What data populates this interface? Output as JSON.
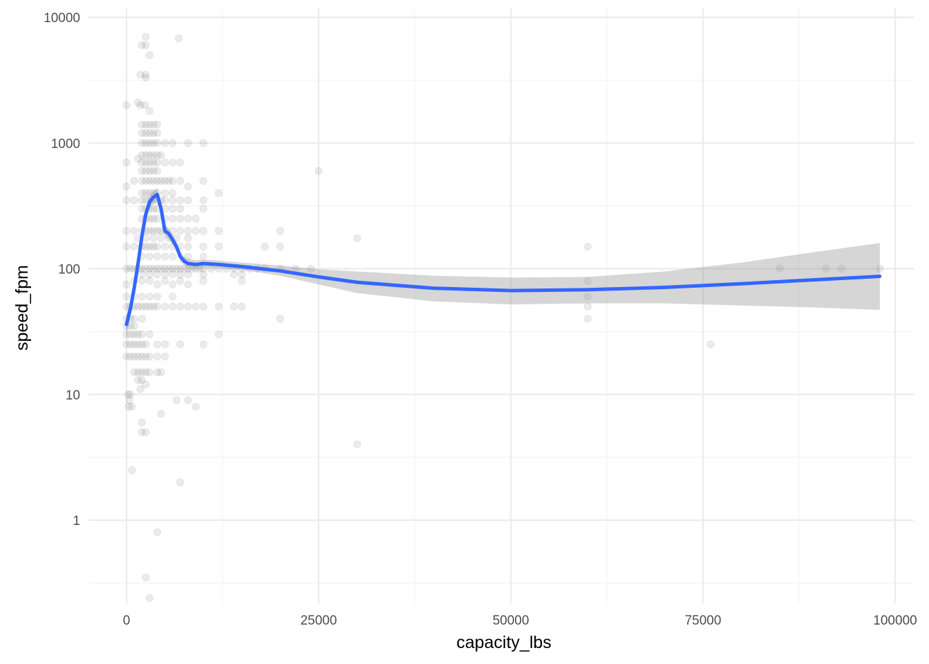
{
  "chart_data": {
    "type": "scatter",
    "title": "",
    "xlabel": "capacity_lbs",
    "ylabel": "speed_fpm",
    "xlim": [
      -5000,
      102000
    ],
    "ylim": [
      0.22,
      10000
    ],
    "y_scale": "log10",
    "x_ticks": [
      0,
      25000,
      50000,
      75000,
      100000
    ],
    "x_tick_labels": [
      "0",
      "25000",
      "50000",
      "75000",
      "100000"
    ],
    "y_ticks": [
      1,
      10,
      100,
      1000,
      10000
    ],
    "y_tick_labels": [
      "1",
      "10",
      "100",
      "1000",
      "10000"
    ],
    "grid": true,
    "legend": "none",
    "colors": {
      "points": "#000000",
      "smooth_line": "#3366FF",
      "confidence_band": "#999999",
      "grid": "#ebebeb"
    },
    "scatter": {
      "series_name": "",
      "opacity": 0.08,
      "points": [
        [
          2500,
          7000
        ],
        [
          2000,
          6000
        ],
        [
          2500,
          6000
        ],
        [
          3000,
          5000
        ],
        [
          6800,
          6800
        ],
        [
          1800,
          3500
        ],
        [
          2500,
          3500
        ],
        [
          2500,
          3300
        ],
        [
          0,
          2000
        ],
        [
          1500,
          2100
        ],
        [
          1800,
          2000
        ],
        [
          2400,
          2000
        ],
        [
          3000,
          1800
        ],
        [
          2000,
          1400
        ],
        [
          2500,
          1400
        ],
        [
          3000,
          1400
        ],
        [
          3500,
          1400
        ],
        [
          4000,
          1400
        ],
        [
          2000,
          1200
        ],
        [
          2500,
          1200
        ],
        [
          3000,
          1200
        ],
        [
          3500,
          1200
        ],
        [
          4000,
          1200
        ],
        [
          2000,
          1000
        ],
        [
          2500,
          1000
        ],
        [
          3000,
          1000
        ],
        [
          3500,
          1000
        ],
        [
          4000,
          1000
        ],
        [
          5000,
          1000
        ],
        [
          6000,
          1000
        ],
        [
          8000,
          1000
        ],
        [
          10000,
          1000
        ],
        [
          2000,
          800
        ],
        [
          2500,
          800
        ],
        [
          3000,
          800
        ],
        [
          3500,
          800
        ],
        [
          4000,
          800
        ],
        [
          4500,
          800
        ],
        [
          5000,
          700
        ],
        [
          6000,
          700
        ],
        [
          7000,
          700
        ],
        [
          0,
          700
        ],
        [
          1500,
          750
        ],
        [
          2000,
          700
        ],
        [
          2500,
          700
        ],
        [
          3000,
          700
        ],
        [
          3500,
          700
        ],
        [
          4000,
          700
        ],
        [
          2000,
          600
        ],
        [
          2500,
          600
        ],
        [
          3000,
          600
        ],
        [
          3500,
          600
        ],
        [
          4000,
          600
        ],
        [
          25000,
          600
        ],
        [
          0,
          450
        ],
        [
          1000,
          500
        ],
        [
          2000,
          500
        ],
        [
          2500,
          500
        ],
        [
          3000,
          500
        ],
        [
          3500,
          500
        ],
        [
          4000,
          500
        ],
        [
          4500,
          500
        ],
        [
          5000,
          500
        ],
        [
          5500,
          500
        ],
        [
          6000,
          500
        ],
        [
          7000,
          500
        ],
        [
          8000,
          450
        ],
        [
          10000,
          500
        ],
        [
          2000,
          400
        ],
        [
          2500,
          400
        ],
        [
          3000,
          400
        ],
        [
          3500,
          400
        ],
        [
          4000,
          400
        ],
        [
          5000,
          400
        ],
        [
          6000,
          400
        ],
        [
          12000,
          400
        ],
        [
          0,
          350
        ],
        [
          1000,
          350
        ],
        [
          2000,
          350
        ],
        [
          2500,
          350
        ],
        [
          3000,
          350
        ],
        [
          3500,
          350
        ],
        [
          4000,
          350
        ],
        [
          4500,
          350
        ],
        [
          5000,
          350
        ],
        [
          6000,
          350
        ],
        [
          7000,
          350
        ],
        [
          8000,
          350
        ],
        [
          10000,
          350
        ],
        [
          2000,
          300
        ],
        [
          2500,
          300
        ],
        [
          3000,
          300
        ],
        [
          3500,
          300
        ],
        [
          4000,
          300
        ],
        [
          5000,
          300
        ],
        [
          6000,
          300
        ],
        [
          7000,
          300
        ],
        [
          10000,
          300
        ],
        [
          2000,
          250
        ],
        [
          2500,
          250
        ],
        [
          3000,
          250
        ],
        [
          3500,
          250
        ],
        [
          4000,
          250
        ],
        [
          5000,
          250
        ],
        [
          6000,
          250
        ],
        [
          7000,
          250
        ],
        [
          8000,
          250
        ],
        [
          9000,
          250
        ],
        [
          0,
          200
        ],
        [
          1000,
          200
        ],
        [
          2000,
          200
        ],
        [
          2500,
          200
        ],
        [
          3000,
          200
        ],
        [
          3500,
          200
        ],
        [
          4000,
          200
        ],
        [
          4500,
          200
        ],
        [
          5000,
          200
        ],
        [
          6000,
          200
        ],
        [
          7000,
          200
        ],
        [
          8000,
          200
        ],
        [
          9000,
          200
        ],
        [
          10000,
          200
        ],
        [
          12000,
          200
        ],
        [
          20000,
          200
        ],
        [
          1500,
          175
        ],
        [
          2500,
          175
        ],
        [
          3500,
          175
        ],
        [
          4500,
          175
        ],
        [
          5500,
          175
        ],
        [
          6500,
          175
        ],
        [
          8000,
          175
        ],
        [
          30000,
          175
        ],
        [
          0,
          150
        ],
        [
          1000,
          150
        ],
        [
          2000,
          150
        ],
        [
          2500,
          150
        ],
        [
          3000,
          150
        ],
        [
          3500,
          150
        ],
        [
          4000,
          150
        ],
        [
          5000,
          150
        ],
        [
          6000,
          150
        ],
        [
          7000,
          150
        ],
        [
          8000,
          150
        ],
        [
          10000,
          150
        ],
        [
          12000,
          150
        ],
        [
          18000,
          150
        ],
        [
          20000,
          150
        ],
        [
          60000,
          150
        ],
        [
          2000,
          125
        ],
        [
          3000,
          125
        ],
        [
          4000,
          125
        ],
        [
          5000,
          125
        ],
        [
          6000,
          125
        ],
        [
          8000,
          125
        ],
        [
          10000,
          125
        ],
        [
          0,
          100
        ],
        [
          500,
          100
        ],
        [
          1000,
          100
        ],
        [
          1500,
          100
        ],
        [
          2000,
          100
        ],
        [
          2500,
          100
        ],
        [
          3000,
          100
        ],
        [
          3500,
          100
        ],
        [
          4000,
          100
        ],
        [
          4500,
          100
        ],
        [
          5000,
          100
        ],
        [
          5500,
          100
        ],
        [
          6000,
          100
        ],
        [
          6500,
          100
        ],
        [
          7000,
          100
        ],
        [
          7500,
          100
        ],
        [
          8000,
          100
        ],
        [
          8500,
          100
        ],
        [
          9000,
          100
        ],
        [
          9500,
          100
        ],
        [
          10000,
          100
        ],
        [
          11000,
          100
        ],
        [
          12000,
          100
        ],
        [
          13000,
          100
        ],
        [
          14000,
          100
        ],
        [
          15000,
          100
        ],
        [
          16000,
          100
        ],
        [
          17000,
          100
        ],
        [
          18000,
          100
        ],
        [
          20000,
          100
        ],
        [
          22000,
          100
        ],
        [
          24000,
          100
        ],
        [
          85000,
          100
        ],
        [
          91000,
          100
        ],
        [
          93000,
          100
        ],
        [
          98000,
          100
        ],
        [
          2000,
          90
        ],
        [
          3000,
          90
        ],
        [
          4000,
          90
        ],
        [
          5000,
          90
        ],
        [
          6000,
          90
        ],
        [
          7000,
          90
        ],
        [
          8000,
          90
        ],
        [
          10000,
          90
        ],
        [
          14000,
          90
        ],
        [
          15000,
          90
        ],
        [
          0,
          75
        ],
        [
          1000,
          80
        ],
        [
          2000,
          80
        ],
        [
          3000,
          80
        ],
        [
          4000,
          75
        ],
        [
          5000,
          80
        ],
        [
          6000,
          75
        ],
        [
          7000,
          80
        ],
        [
          8000,
          75
        ],
        [
          10000,
          80
        ],
        [
          15000,
          80
        ],
        [
          60000,
          80
        ],
        [
          0,
          60
        ],
        [
          1000,
          60
        ],
        [
          2000,
          60
        ],
        [
          3000,
          60
        ],
        [
          4000,
          60
        ],
        [
          6000,
          60
        ],
        [
          60000,
          60
        ],
        [
          0,
          50
        ],
        [
          500,
          50
        ],
        [
          1000,
          50
        ],
        [
          1500,
          50
        ],
        [
          2000,
          50
        ],
        [
          2500,
          50
        ],
        [
          3000,
          50
        ],
        [
          3500,
          50
        ],
        [
          4000,
          50
        ],
        [
          5000,
          50
        ],
        [
          6000,
          50
        ],
        [
          7000,
          50
        ],
        [
          8000,
          50
        ],
        [
          9000,
          50
        ],
        [
          10000,
          50
        ],
        [
          12000,
          50
        ],
        [
          14000,
          50
        ],
        [
          15000,
          50
        ],
        [
          60000,
          50
        ],
        [
          0,
          40
        ],
        [
          500,
          40
        ],
        [
          1000,
          40
        ],
        [
          2000,
          40
        ],
        [
          20000,
          40
        ],
        [
          60000,
          40
        ],
        [
          0,
          35
        ],
        [
          500,
          35
        ],
        [
          1000,
          35
        ],
        [
          0,
          30
        ],
        [
          500,
          30
        ],
        [
          1000,
          30
        ],
        [
          1500,
          30
        ],
        [
          2000,
          30
        ],
        [
          3000,
          30
        ],
        [
          12000,
          30
        ],
        [
          0,
          25
        ],
        [
          500,
          25
        ],
        [
          1000,
          25
        ],
        [
          1500,
          25
        ],
        [
          2000,
          25
        ],
        [
          2500,
          25
        ],
        [
          4000,
          25
        ],
        [
          5000,
          25
        ],
        [
          7000,
          25
        ],
        [
          10000,
          25
        ],
        [
          76000,
          25
        ],
        [
          0,
          20
        ],
        [
          500,
          20
        ],
        [
          1000,
          20
        ],
        [
          1500,
          20
        ],
        [
          2000,
          20
        ],
        [
          2500,
          20
        ],
        [
          3000,
          20
        ],
        [
          4000,
          20
        ],
        [
          5000,
          20
        ],
        [
          1000,
          15
        ],
        [
          1500,
          15
        ],
        [
          2000,
          15
        ],
        [
          2500,
          15
        ],
        [
          3000,
          15
        ],
        [
          4000,
          15
        ],
        [
          4500,
          15
        ],
        [
          1500,
          13
        ],
        [
          2000,
          13
        ],
        [
          2500,
          12
        ],
        [
          1800,
          11
        ],
        [
          200,
          10
        ],
        [
          500,
          10
        ],
        [
          400,
          9
        ],
        [
          300,
          8
        ],
        [
          700,
          8
        ],
        [
          6500,
          9
        ],
        [
          8000,
          9
        ],
        [
          9000,
          8
        ],
        [
          2000,
          6
        ],
        [
          2000,
          5
        ],
        [
          2500,
          5
        ],
        [
          4500,
          7
        ],
        [
          700,
          2.5
        ],
        [
          7000,
          2
        ],
        [
          30000,
          4
        ],
        [
          4000,
          0.8
        ],
        [
          2500,
          0.35
        ],
        [
          3000,
          0.24
        ]
      ]
    },
    "smooth": {
      "series_name": "",
      "x": [
        0,
        500,
        1000,
        1500,
        2000,
        2500,
        3000,
        3500,
        4000,
        4500,
        5000,
        5500,
        6000,
        6500,
        7000,
        7500,
        8000,
        9000,
        10000,
        12000,
        15000,
        20000,
        25000,
        30000,
        40000,
        50000,
        60000,
        70000,
        80000,
        90000,
        98000
      ],
      "y": [
        36,
        48,
        70,
        110,
        180,
        270,
        340,
        370,
        390,
        300,
        200,
        190,
        170,
        150,
        125,
        115,
        110,
        108,
        110,
        108,
        104,
        96,
        86,
        78,
        70,
        67,
        68,
        71,
        76,
        82,
        87
      ],
      "band_lower": [
        30,
        42,
        60,
        95,
        160,
        240,
        300,
        330,
        350,
        270,
        180,
        172,
        155,
        138,
        115,
        106,
        101,
        100,
        102,
        101,
        98,
        88,
        75,
        64,
        55,
        52,
        53,
        53,
        51,
        49,
        47
      ],
      "band_upper": [
        43,
        56,
        82,
        128,
        205,
        305,
        385,
        415,
        435,
        335,
        222,
        210,
        188,
        165,
        137,
        125,
        120,
        117,
        118,
        116,
        112,
        106,
        99,
        95,
        88,
        85,
        86,
        95,
        112,
        137,
        160
      ]
    }
  }
}
